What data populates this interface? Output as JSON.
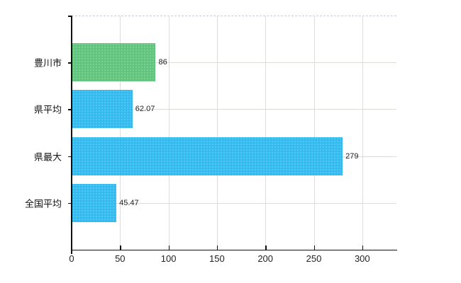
{
  "chart_data": {
    "type": "bar",
    "orientation": "horizontal",
    "categories": [
      "豊川市",
      "県平均",
      "県最大",
      "全国平均"
    ],
    "values": [
      86,
      62.07,
      279,
      45.47
    ],
    "value_labels": [
      "86",
      "62.07",
      "279",
      "45.47"
    ],
    "bar_colors": [
      "#62c57e",
      "#33bbf0",
      "#33bbf0",
      "#33bbf0"
    ],
    "xticks": [
      0,
      50,
      100,
      150,
      200,
      250,
      300
    ],
    "xlim": [
      0,
      335
    ],
    "grid": true,
    "legend": false
  },
  "colors": {
    "bar_highlight": "#62c57e",
    "bar_default": "#33bbf0",
    "axis_line": "#111111",
    "gridline": "#dcdcdc",
    "plot_top_border": "#c9c9d6",
    "label_text": "#222222"
  }
}
